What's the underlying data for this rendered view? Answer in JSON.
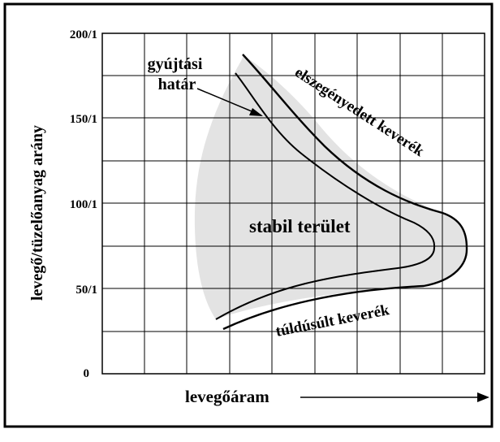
{
  "colors": {
    "shade": "#e3e3e3",
    "grid": "#000000",
    "frame": "#000000",
    "background": "#ffffff"
  },
  "chart_data": {
    "type": "area",
    "title": "",
    "xlabel": "levegőáram",
    "ylabel": "levegő/tüzelőanyag arány",
    "y_ticks": [
      "0",
      "50/1",
      "100/1",
      "150/1",
      "200/1"
    ],
    "ylim": [
      0,
      200
    ],
    "grid": true,
    "annotations": {
      "ignition_limit": "gyújtási\nhatár",
      "stable_region": "stabil terület",
      "lean_mixture": "elszegényedett keverék",
      "rich_mixture": "túldúsúlt keverék"
    }
  }
}
